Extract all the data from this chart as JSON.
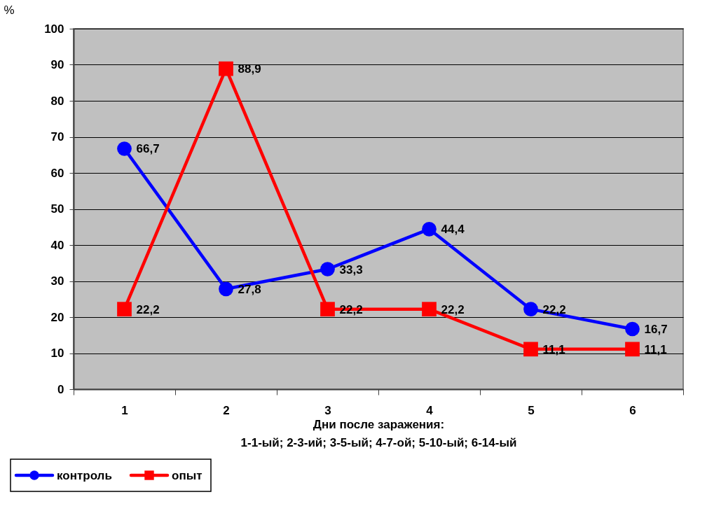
{
  "chart_data": {
    "type": "line",
    "ylabel": "%",
    "xlabel": "Дни после заражения:\n1-1-ый; 2-3-ий; 3-5-ый; 4-7-ой; 5-10-ый; 6-14-ый",
    "categories": [
      "1",
      "2",
      "3",
      "4",
      "5",
      "6"
    ],
    "series": [
      {
        "name": "контроль",
        "color": "#0000ff",
        "marker": "circle",
        "values": [
          66.7,
          27.8,
          33.3,
          44.4,
          22.2,
          16.7
        ],
        "value_labels": [
          "66,7",
          "27,8",
          "33,3",
          "44,4",
          "22,2",
          "16,7"
        ]
      },
      {
        "name": "опыт",
        "color": "#ff0000",
        "marker": "square",
        "values": [
          22.2,
          88.9,
          22.2,
          22.2,
          11.1,
          11.1
        ],
        "value_labels": [
          "22,2",
          "88,9",
          "22,2",
          "22,2",
          "11,1",
          "11,1"
        ]
      }
    ],
    "ylim": [
      0,
      100
    ],
    "yticks": [
      0,
      10,
      20,
      30,
      40,
      50,
      60,
      70,
      80,
      90,
      100
    ],
    "grid": "y",
    "legend": "bottom left",
    "line_style": "solid"
  }
}
